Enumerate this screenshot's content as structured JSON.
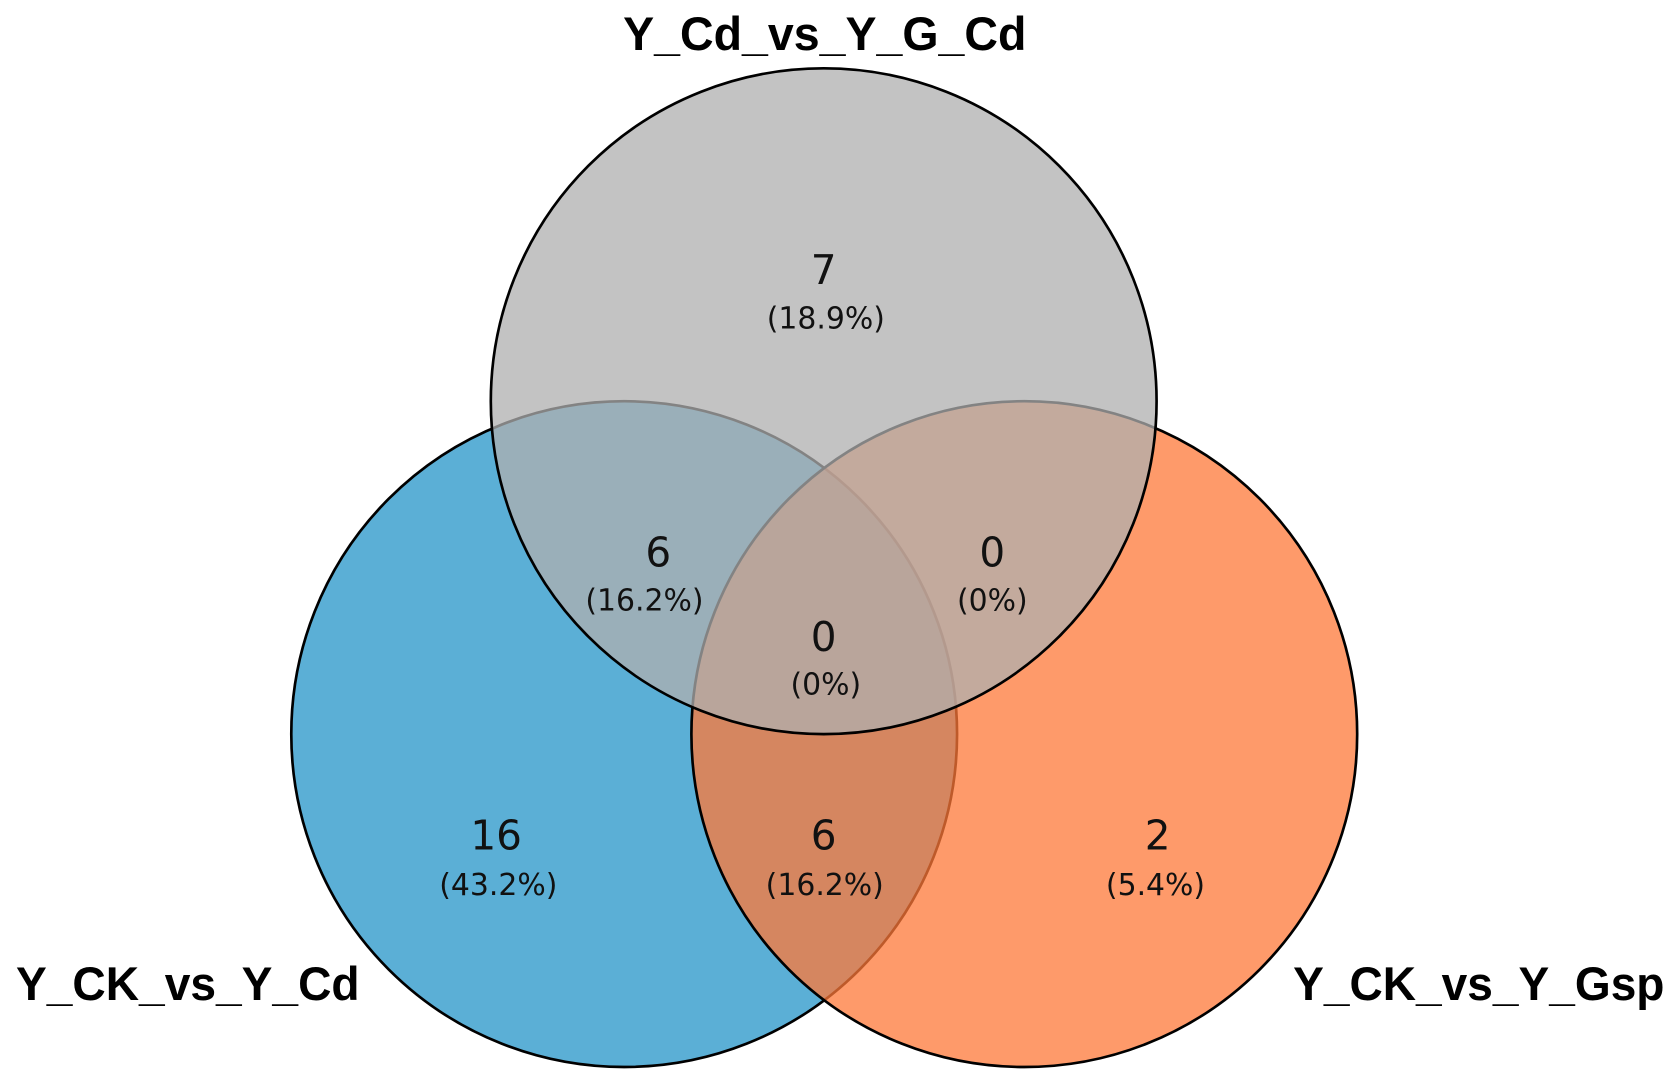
{
  "diagram": {
    "type": "venn",
    "sets": [
      {
        "label": "Y_CK_vs_Y_Cd",
        "color": "#2494c8"
      },
      {
        "label": "Y_Cd_vs_Y_G_Cd",
        "color": "#afafaf"
      },
      {
        "label": "Y_CK_vs_Y_Gsp",
        "color": "#fe7838"
      }
    ],
    "regions": [
      {
        "in": [
          1
        ],
        "count": "7",
        "percent": "(18.9%)"
      },
      {
        "in": [
          0,
          1
        ],
        "count": "6",
        "percent": "(16.2%)"
      },
      {
        "in": [
          1,
          2
        ],
        "count": "0",
        "percent": "(0%)"
      },
      {
        "in": [
          0,
          1,
          2
        ],
        "count": "0",
        "percent": "(0%)"
      },
      {
        "in": [
          0
        ],
        "count": "16",
        "percent": "(43.2%)"
      },
      {
        "in": [
          0,
          2
        ],
        "count": "6",
        "percent": "(16.2%)"
      },
      {
        "in": [
          2
        ],
        "count": "2",
        "percent": "(5.4%)"
      }
    ]
  }
}
